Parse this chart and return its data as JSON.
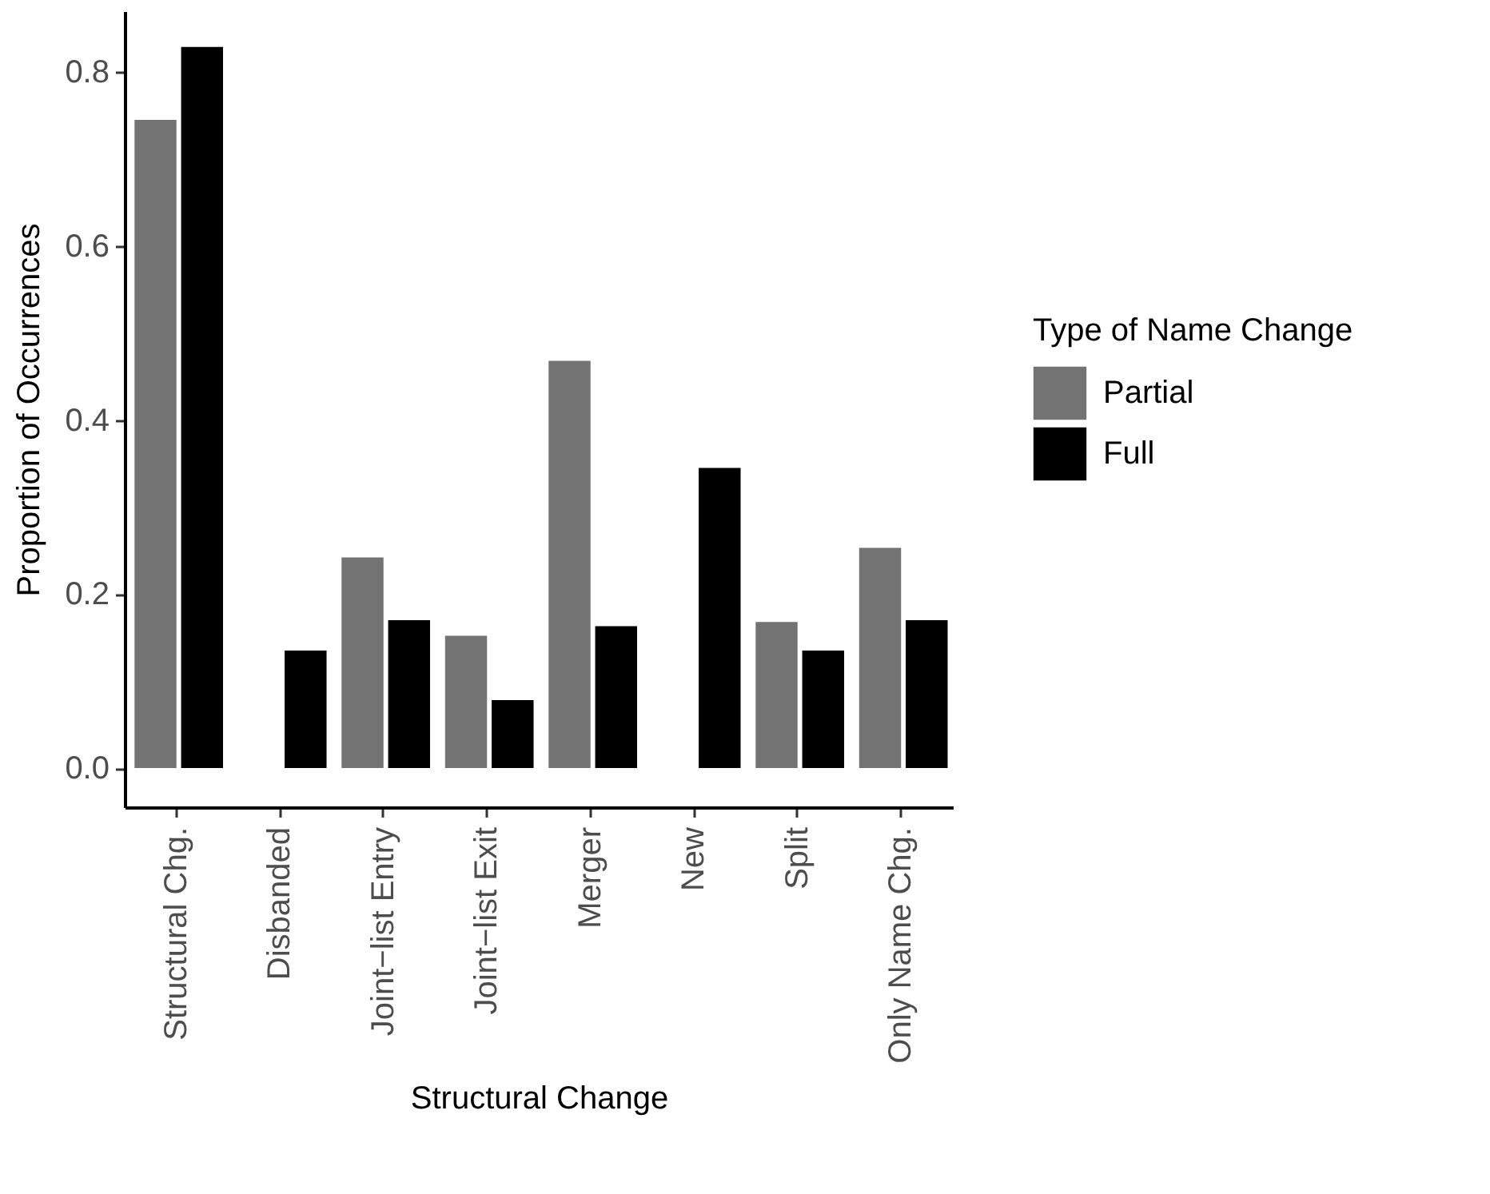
{
  "chart_data": {
    "type": "bar",
    "xlabel": "Structural Change",
    "ylabel": "Proportion of Occurrences",
    "legend_title": "Type of Name Change",
    "categories": [
      "Structural Chg.",
      "Disbanded",
      "Joint−list Entry",
      "Joint−list Exit",
      "Merger",
      "New",
      "Split",
      "Only Name Chg."
    ],
    "series": [
      {
        "name": "Partial",
        "color": "#737373",
        "values": [
          0.745,
          0,
          0.242,
          0.152,
          0.468,
          0,
          0.168,
          0.253
        ]
      },
      {
        "name": "Full",
        "color": "#000000",
        "values": [
          0.829,
          0.135,
          0.17,
          0.078,
          0.163,
          0.345,
          0.135,
          0.17
        ]
      }
    ],
    "ylim": [
      -0.045,
      0.87
    ],
    "yticks": [
      {
        "value": 0,
        "label": "0.0"
      },
      0.2,
      0.4,
      0.6,
      0.8
    ],
    "grid": false,
    "legend": "right"
  }
}
